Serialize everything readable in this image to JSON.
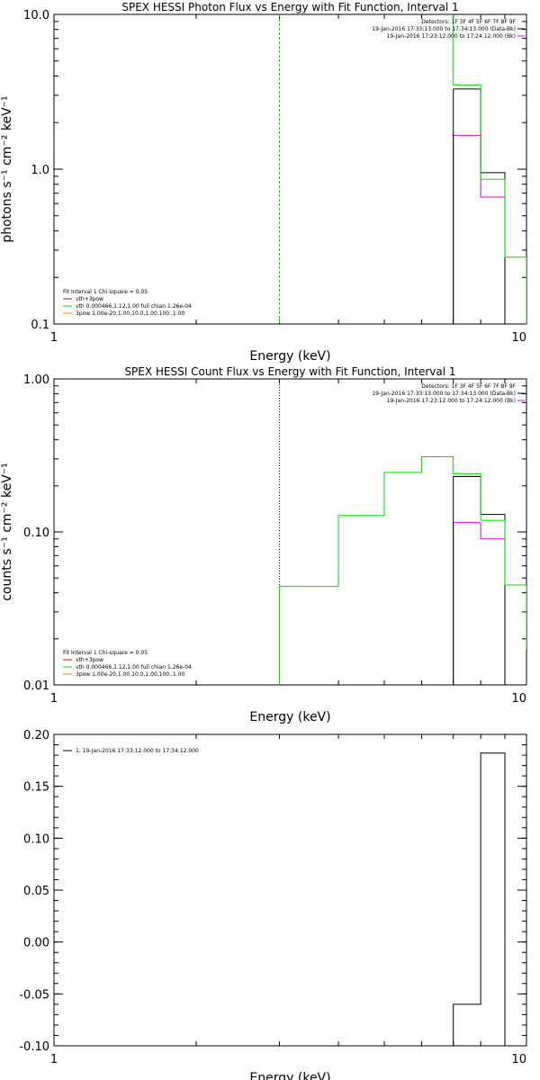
{
  "colors": {
    "black": "#000000",
    "magenta": "#dd00dd",
    "green": "#00dd00",
    "red": "#dd0000",
    "orange": "#dd9900"
  },
  "chart_data": [
    {
      "type": "line",
      "step": true,
      "title": "SPEX HESSI Photon Flux vs Energy with Fit Function, Interval 1",
      "xlabel": "Energy (keV)",
      "ylabel": "photons s⁻¹ cm⁻² keV⁻¹",
      "xscale": "log",
      "yscale": "log",
      "xlim": [
        1,
        10
      ],
      "ylim": [
        0.1,
        10
      ],
      "xtick_labels": [
        "1",
        "10"
      ],
      "ytick_values": [
        0.1,
        1,
        10
      ],
      "ytick_labels": [
        "0.1",
        "1.0",
        "10.0"
      ],
      "vline_x": 3.0,
      "vline_style": "dashed",
      "vline_color": "green",
      "legend_header": [
        "Detectors: 1F 3F 4F 5F 6F 7F 8F 9F",
        "19-Jan-2016 17:33:13.000 to 17:34:13.000 (Data-Bk)",
        "19-Jan-2016 17:23:12.000 to 17:24:12.000 (Bk)"
      ],
      "legend_lines": [
        "Fit Interval 1   Chi-square = 0.05",
        "vth+3pow",
        "vth 0.000466,1.12,1.00  full chian 1.26e-04",
        "3pow 1.00e-20,1.00,10.0,1.00,100.,1.00"
      ],
      "series": [
        {
          "role": "data",
          "color": "black",
          "edges": [
            7,
            8,
            9
          ],
          "values": [
            3.3,
            0.95
          ]
        },
        {
          "role": "background",
          "color": "magenta",
          "edges": [
            7,
            8,
            9
          ],
          "values": [
            1.65,
            0.66
          ]
        },
        {
          "role": "fit",
          "color": "green",
          "edges": [
            7,
            8,
            9,
            10
          ],
          "values": [
            3.5,
            0.86,
            0.27
          ],
          "start_value": 10
        }
      ]
    },
    {
      "type": "line",
      "step": true,
      "title": "SPEX HESSI Count Flux vs Energy with Fit Function, Interval 1",
      "xlabel": "Energy (keV)",
      "ylabel": "counts s⁻¹ cm⁻² keV⁻¹",
      "xscale": "log",
      "yscale": "log",
      "xlim": [
        1,
        10
      ],
      "ylim": [
        0.01,
        1
      ],
      "xtick_labels": [
        "1",
        "10"
      ],
      "ytick_values": [
        0.01,
        0.1,
        1
      ],
      "ytick_labels": [
        "0.01",
        "0.10",
        "1.00"
      ],
      "vline_x": 3.0,
      "vline_style": "dotted",
      "vline_color": "black",
      "legend_header": [
        "Detectors: 1F 3F 4F 5F 6F 7F 8F 9F",
        "19-Jan-2016 17:33:13.000 to 17:34:13.000 (Data-Bk)",
        "19-Jan-2016 17:23:12.000 to 17:24:12.000 (Bk)"
      ],
      "legend_lines": [
        "Fit Interval 1   Chi-square = 0.05",
        "vth+3pow",
        "vth 0.000466,1.12,1.00  full chian 1.26e-04",
        "3pow 1.00e-20,1.00,10.0,1.00,100.,1.00"
      ],
      "series": [
        {
          "role": "data",
          "color": "black",
          "edges": [
            7,
            8,
            9
          ],
          "values": [
            0.23,
            0.13
          ]
        },
        {
          "role": "background",
          "color": "magenta",
          "edges": [
            7,
            8,
            9
          ],
          "values": [
            0.115,
            0.09
          ]
        },
        {
          "role": "fit",
          "color": "green",
          "edges": [
            3,
            4,
            5,
            6,
            7,
            8,
            9,
            10
          ],
          "values": [
            0.044,
            0.128,
            0.245,
            0.31,
            0.24,
            0.119,
            0.045
          ],
          "end_value": 0.017
        }
      ]
    },
    {
      "type": "line",
      "step": true,
      "title": "",
      "xlabel": "Energy (keV)",
      "ylabel": "",
      "xscale": "log",
      "yscale": "linear",
      "xlim": [
        1,
        10
      ],
      "ylim": [
        -0.1,
        0.2
      ],
      "xtick_labels": [
        "1",
        "10"
      ],
      "ytick_values": [
        -0.1,
        -0.05,
        0,
        0.05,
        0.1,
        0.15,
        0.2
      ],
      "ytick_labels": [
        "-0.10",
        "-0.05",
        "0.00",
        "0.05",
        "0.10",
        "0.15",
        "0.20"
      ],
      "legend_lines": [
        "1. 19-Jan-2016 17:33:12.000 to 17:34:12.000"
      ],
      "series": [
        {
          "role": "residuals",
          "color": "black",
          "edges": [
            7,
            8,
            9
          ],
          "values": [
            -0.06,
            0.182
          ]
        }
      ]
    }
  ]
}
